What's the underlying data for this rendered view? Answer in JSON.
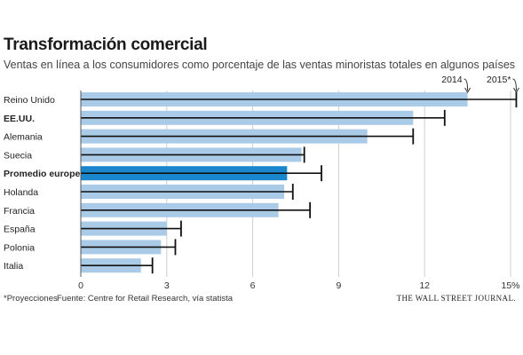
{
  "header": {
    "title": "Transformación comercial",
    "subtitle": "Ventas en línea a los consumidores como porcentaje de las ventas minoristas totales en algunos países"
  },
  "footer": {
    "note": "*Proyecciones",
    "source": "Fuente: Centre for Retail Research, vía statista",
    "brand": "THE WALL STREET JOURNAL."
  },
  "chart_data": {
    "type": "bar",
    "orientation": "horizontal",
    "title": "Transformación comercial",
    "subtitle": "Ventas en línea a los consumidores como porcentaje de las ventas minoristas totales en algunos países",
    "categories": [
      "Reino Unido",
      "EE.UU.",
      "Alemania",
      "Suecia",
      "Promedio europeo",
      "Holanda",
      "Francia",
      "España",
      "Polonia",
      "Italia"
    ],
    "bold_categories": [
      "EE.UU.",
      "Promedio europeo"
    ],
    "highlight_category": "Promedio europeo",
    "series": [
      {
        "name": "2014",
        "mark": "bar",
        "values": [
          13.5,
          11.6,
          10.0,
          7.7,
          7.2,
          7.1,
          6.9,
          3.0,
          2.8,
          2.1
        ]
      },
      {
        "name": "2015*",
        "mark": "line",
        "values": [
          15.2,
          12.7,
          11.6,
          7.8,
          8.4,
          7.4,
          8.0,
          3.5,
          3.3,
          2.5
        ]
      }
    ],
    "x_ticks": [
      "0",
      "3",
      "6",
      "9",
      "12",
      "15%"
    ],
    "xlim": [
      0,
      15
    ],
    "grid": true,
    "colors": {
      "bar": "#a9cbe8",
      "highlight": "#1a87cc",
      "line": "#111111",
      "grid": "#cfcfcf"
    }
  }
}
